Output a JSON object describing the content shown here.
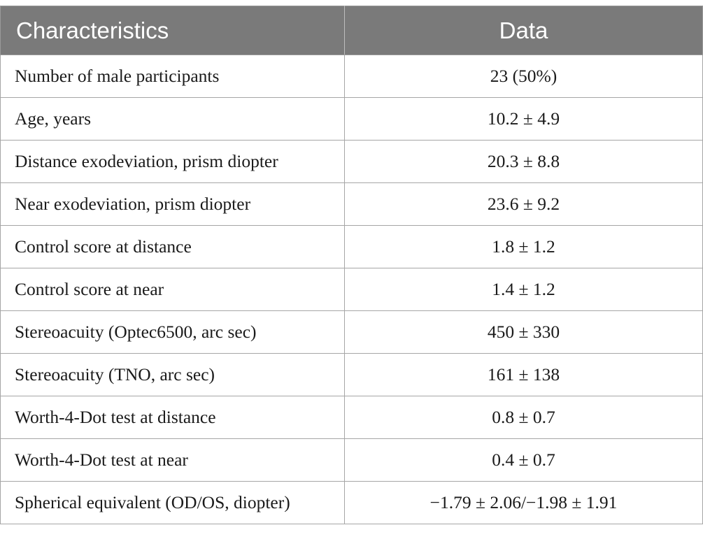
{
  "table": {
    "headers": [
      "Characteristics",
      "Data"
    ],
    "rows": [
      {
        "label": "Number of male participants",
        "value": "23 (50%)"
      },
      {
        "label": "Age, years",
        "value": "10.2 ± 4.9"
      },
      {
        "label": "Distance exodeviation, prism diopter",
        "value": "20.3 ± 8.8"
      },
      {
        "label": "Near exodeviation, prism diopter",
        "value": "23.6 ± 9.2"
      },
      {
        "label": "Control score at distance",
        "value": "1.8 ± 1.2"
      },
      {
        "label": "Control score at near",
        "value": "1.4 ± 1.2"
      },
      {
        "label": "Stereoacuity (Optec6500, arc sec)",
        "value": "450 ± 330"
      },
      {
        "label": "Stereoacuity (TNO, arc sec)",
        "value": "161 ± 138"
      },
      {
        "label": "Worth-4-Dot test at distance",
        "value": "0.8 ± 0.7"
      },
      {
        "label": "Worth-4-Dot test at near",
        "value": "0.4 ± 0.7"
      },
      {
        "label": "Spherical equivalent (OD/OS, diopter)",
        "value": "−1.79 ± 2.06/−1.98 ± 1.91"
      }
    ]
  },
  "colors": {
    "header_bg": "#7a7a7a",
    "header_text": "#ffffff",
    "border": "#a6a6a6"
  }
}
